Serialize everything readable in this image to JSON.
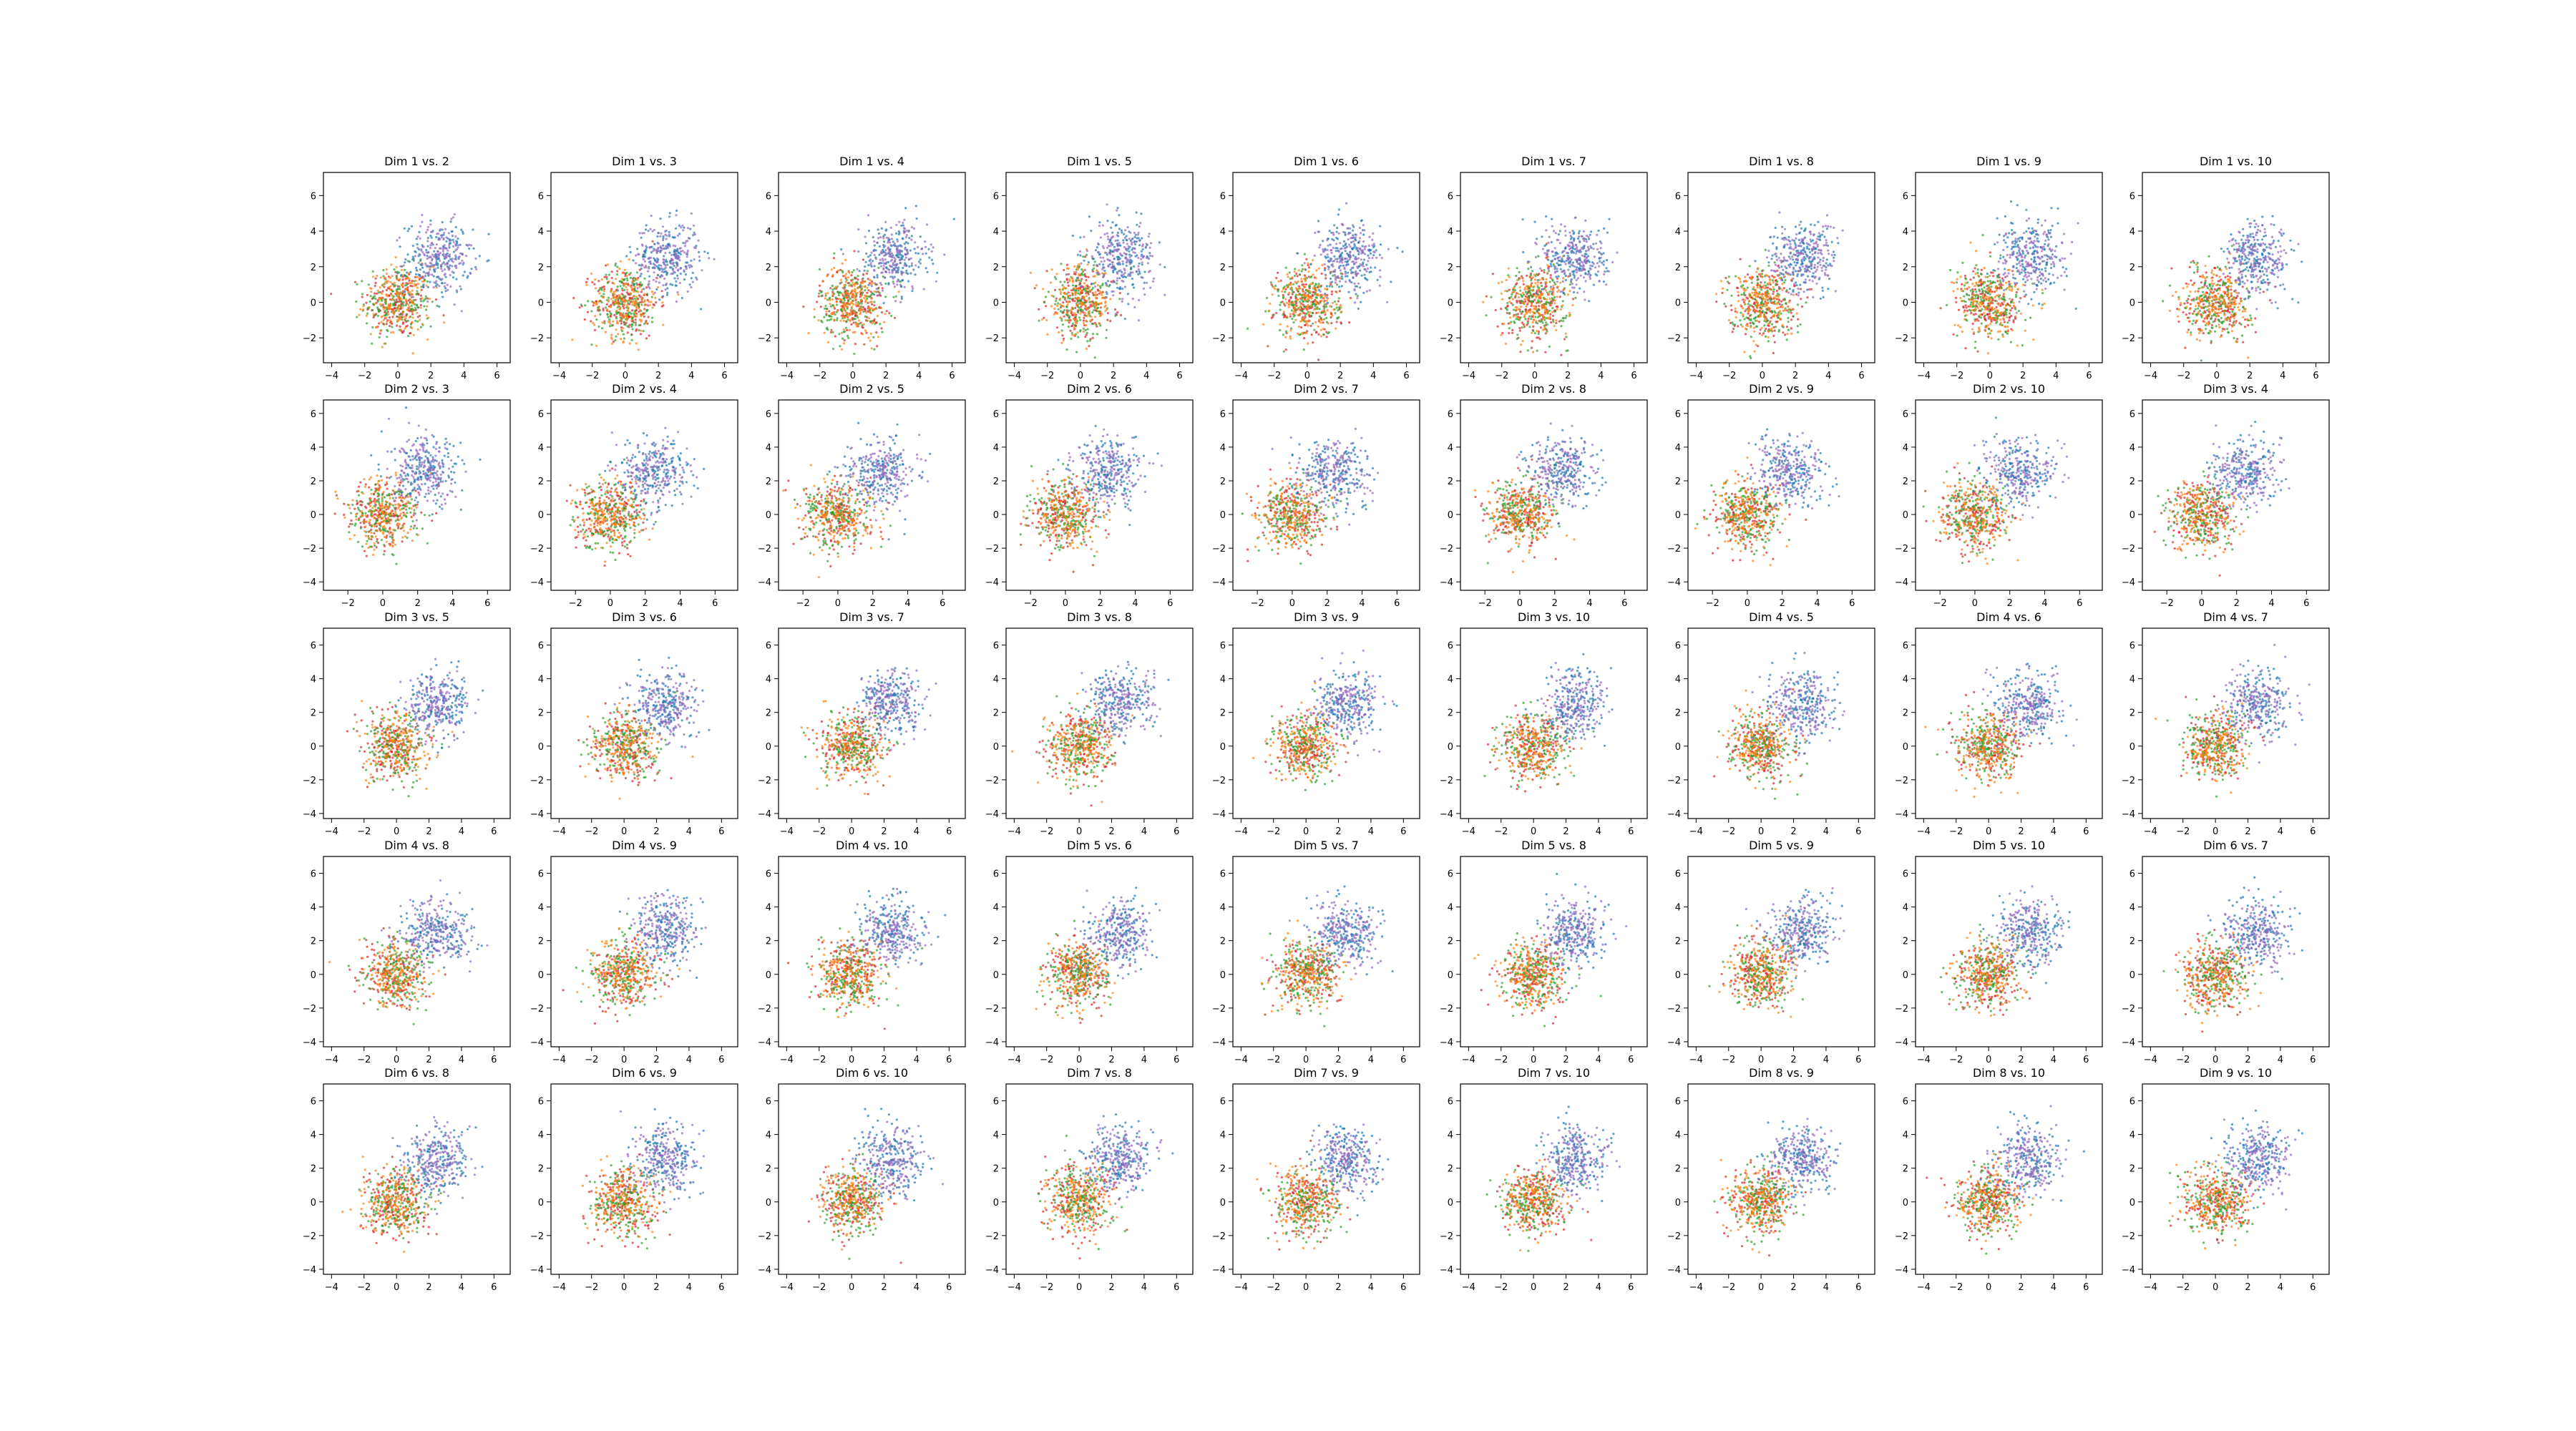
{
  "chart_data": {
    "type": "scatter",
    "grid": false,
    "legend": "none",
    "grid_layout": {
      "rows": 5,
      "cols": 9
    },
    "clusters": [
      {
        "color": "#d62728",
        "center": [
          0,
          0
        ],
        "std": 1.0
      },
      {
        "color": "#2ca02c",
        "center": [
          0,
          0
        ],
        "std": 1.0
      },
      {
        "color": "#ff7f0e",
        "center": [
          0,
          0
        ],
        "std": 1.0
      },
      {
        "color": "#1f77b4",
        "center": [
          2.5,
          2.5
        ],
        "std": 1.0
      },
      {
        "color": "#9467bd",
        "center": [
          2.5,
          2.5
        ],
        "std": 1.0
      }
    ],
    "panels": [
      {
        "title": "Dim 1 vs. 2",
        "xticks": [
          -4,
          -2,
          0,
          2,
          4,
          6
        ],
        "yticks": [
          -2,
          0,
          2,
          4,
          6
        ],
        "xlim": [
          -4.5,
          6.8
        ],
        "ylim": [
          -3.4,
          7.3
        ]
      },
      {
        "title": "Dim 1 vs. 3",
        "xticks": [
          -4,
          -2,
          0,
          2,
          4,
          6
        ],
        "yticks": [
          -2,
          0,
          2,
          4,
          6
        ],
        "xlim": [
          -4.5,
          6.8
        ],
        "ylim": [
          -3.4,
          7.3
        ]
      },
      {
        "title": "Dim 1 vs. 4",
        "xticks": [
          -4,
          -2,
          0,
          2,
          4,
          6
        ],
        "yticks": [
          -2,
          0,
          2,
          4,
          6
        ],
        "xlim": [
          -4.5,
          6.8
        ],
        "ylim": [
          -3.4,
          7.3
        ]
      },
      {
        "title": "Dim 1 vs. 5",
        "xticks": [
          -4,
          -2,
          0,
          2,
          4,
          6
        ],
        "yticks": [
          -2,
          0,
          2,
          4,
          6
        ],
        "xlim": [
          -4.5,
          6.8
        ],
        "ylim": [
          -3.4,
          7.3
        ]
      },
      {
        "title": "Dim 1 vs. 6",
        "xticks": [
          -4,
          -2,
          0,
          2,
          4,
          6
        ],
        "yticks": [
          -2,
          0,
          2,
          4,
          6
        ],
        "xlim": [
          -4.5,
          6.8
        ],
        "ylim": [
          -3.4,
          7.3
        ]
      },
      {
        "title": "Dim 1 vs. 7",
        "xticks": [
          -4,
          -2,
          0,
          2,
          4,
          6
        ],
        "yticks": [
          -2,
          0,
          2,
          4,
          6
        ],
        "xlim": [
          -4.5,
          6.8
        ],
        "ylim": [
          -3.4,
          7.3
        ]
      },
      {
        "title": "Dim 1 vs. 8",
        "xticks": [
          -4,
          -2,
          0,
          2,
          4,
          6
        ],
        "yticks": [
          -2,
          0,
          2,
          4,
          6
        ],
        "xlim": [
          -4.5,
          6.8
        ],
        "ylim": [
          -3.4,
          7.3
        ]
      },
      {
        "title": "Dim 1 vs. 9",
        "xticks": [
          -4,
          -2,
          0,
          2,
          4,
          6
        ],
        "yticks": [
          -2,
          0,
          2,
          4,
          6
        ],
        "xlim": [
          -4.5,
          6.8
        ],
        "ylim": [
          -3.4,
          7.3
        ]
      },
      {
        "title": "Dim 1 vs. 10",
        "xticks": [
          -4,
          -2,
          0,
          2,
          4,
          6
        ],
        "yticks": [
          -2,
          0,
          2,
          4,
          6
        ],
        "xlim": [
          -4.5,
          6.8
        ],
        "ylim": [
          -3.4,
          7.3
        ]
      },
      {
        "title": "Dim 2 vs. 3",
        "xticks": [
          -2,
          0,
          2,
          4,
          6
        ],
        "yticks": [
          -4,
          -2,
          0,
          2,
          4,
          6
        ],
        "xlim": [
          -3.4,
          7.3
        ],
        "ylim": [
          -4.5,
          6.8
        ]
      },
      {
        "title": "Dim 2 vs. 4",
        "xticks": [
          -2,
          0,
          2,
          4,
          6
        ],
        "yticks": [
          -4,
          -2,
          0,
          2,
          4,
          6
        ],
        "xlim": [
          -3.4,
          7.3
        ],
        "ylim": [
          -4.5,
          6.8
        ]
      },
      {
        "title": "Dim 2 vs. 5",
        "xticks": [
          -2,
          0,
          2,
          4,
          6
        ],
        "yticks": [
          -4,
          -2,
          0,
          2,
          4,
          6
        ],
        "xlim": [
          -3.4,
          7.3
        ],
        "ylim": [
          -4.5,
          6.8
        ]
      },
      {
        "title": "Dim 2 vs. 6",
        "xticks": [
          -2,
          0,
          2,
          4,
          6
        ],
        "yticks": [
          -4,
          -2,
          0,
          2,
          4,
          6
        ],
        "xlim": [
          -3.4,
          7.3
        ],
        "ylim": [
          -4.5,
          6.8
        ]
      },
      {
        "title": "Dim 2 vs. 7",
        "xticks": [
          -2,
          0,
          2,
          4,
          6
        ],
        "yticks": [
          -4,
          -2,
          0,
          2,
          4,
          6
        ],
        "xlim": [
          -3.4,
          7.3
        ],
        "ylim": [
          -4.5,
          6.8
        ]
      },
      {
        "title": "Dim 2 vs. 8",
        "xticks": [
          -2,
          0,
          2,
          4,
          6
        ],
        "yticks": [
          -4,
          -2,
          0,
          2,
          4,
          6
        ],
        "xlim": [
          -3.4,
          7.3
        ],
        "ylim": [
          -4.5,
          6.8
        ]
      },
      {
        "title": "Dim 2 vs. 9",
        "xticks": [
          -2,
          0,
          2,
          4,
          6
        ],
        "yticks": [
          -4,
          -2,
          0,
          2,
          4,
          6
        ],
        "xlim": [
          -3.4,
          7.3
        ],
        "ylim": [
          -4.5,
          6.8
        ]
      },
      {
        "title": "Dim 2 vs. 10",
        "xticks": [
          -2,
          0,
          2,
          4,
          6
        ],
        "yticks": [
          -4,
          -2,
          0,
          2,
          4,
          6
        ],
        "xlim": [
          -3.4,
          7.3
        ],
        "ylim": [
          -4.5,
          6.8
        ]
      },
      {
        "title": "Dim 3 vs. 4",
        "xticks": [
          -2,
          0,
          2,
          4,
          6
        ],
        "yticks": [
          -4,
          -2,
          0,
          2,
          4,
          6
        ],
        "xlim": [
          -3.4,
          7.3
        ],
        "ylim": [
          -4.5,
          6.8
        ]
      },
      {
        "title": "Dim 3 vs. 5",
        "xticks": [
          -4,
          -2,
          0,
          2,
          4,
          6
        ],
        "yticks": [
          -4,
          -2,
          0,
          2,
          4,
          6
        ],
        "xlim": [
          -4.5,
          7.0
        ],
        "ylim": [
          -4.3,
          7.0
        ]
      },
      {
        "title": "Dim 3 vs. 6",
        "xticks": [
          -4,
          -2,
          0,
          2,
          4,
          6
        ],
        "yticks": [
          -4,
          -2,
          0,
          2,
          4,
          6
        ],
        "xlim": [
          -4.5,
          7.0
        ],
        "ylim": [
          -4.3,
          7.0
        ]
      },
      {
        "title": "Dim 3 vs. 7",
        "xticks": [
          -4,
          -2,
          0,
          2,
          4,
          6
        ],
        "yticks": [
          -4,
          -2,
          0,
          2,
          4,
          6
        ],
        "xlim": [
          -4.5,
          7.0
        ],
        "ylim": [
          -4.3,
          7.0
        ]
      },
      {
        "title": "Dim 3 vs. 8",
        "xticks": [
          -4,
          -2,
          0,
          2,
          4,
          6
        ],
        "yticks": [
          -4,
          -2,
          0,
          2,
          4,
          6
        ],
        "xlim": [
          -4.5,
          7.0
        ],
        "ylim": [
          -4.3,
          7.0
        ]
      },
      {
        "title": "Dim 3 vs. 9",
        "xticks": [
          -4,
          -2,
          0,
          2,
          4,
          6
        ],
        "yticks": [
          -4,
          -2,
          0,
          2,
          4,
          6
        ],
        "xlim": [
          -4.5,
          7.0
        ],
        "ylim": [
          -4.3,
          7.0
        ]
      },
      {
        "title": "Dim 3 vs. 10",
        "xticks": [
          -4,
          -2,
          0,
          2,
          4,
          6
        ],
        "yticks": [
          -4,
          -2,
          0,
          2,
          4,
          6
        ],
        "xlim": [
          -4.5,
          7.0
        ],
        "ylim": [
          -4.3,
          7.0
        ]
      },
      {
        "title": "Dim 4 vs. 5",
        "xticks": [
          -4,
          -2,
          0,
          2,
          4,
          6
        ],
        "yticks": [
          -4,
          -2,
          0,
          2,
          4,
          6
        ],
        "xlim": [
          -4.5,
          7.0
        ],
        "ylim": [
          -4.3,
          7.0
        ]
      },
      {
        "title": "Dim 4 vs. 6",
        "xticks": [
          -4,
          -2,
          0,
          2,
          4,
          6
        ],
        "yticks": [
          -4,
          -2,
          0,
          2,
          4,
          6
        ],
        "xlim": [
          -4.5,
          7.0
        ],
        "ylim": [
          -4.3,
          7.0
        ]
      },
      {
        "title": "Dim 4 vs. 7",
        "xticks": [
          -4,
          -2,
          0,
          2,
          4,
          6
        ],
        "yticks": [
          -4,
          -2,
          0,
          2,
          4,
          6
        ],
        "xlim": [
          -4.5,
          7.0
        ],
        "ylim": [
          -4.3,
          7.0
        ]
      },
      {
        "title": "Dim 4 vs. 8",
        "xticks": [
          -4,
          -2,
          0,
          2,
          4,
          6
        ],
        "yticks": [
          -4,
          -2,
          0,
          2,
          4,
          6
        ],
        "xlim": [
          -4.5,
          7.0
        ],
        "ylim": [
          -4.3,
          7.0
        ]
      },
      {
        "title": "Dim 4 vs. 9",
        "xticks": [
          -4,
          -2,
          0,
          2,
          4,
          6
        ],
        "yticks": [
          -4,
          -2,
          0,
          2,
          4,
          6
        ],
        "xlim": [
          -4.5,
          7.0
        ],
        "ylim": [
          -4.3,
          7.0
        ]
      },
      {
        "title": "Dim 4 vs. 10",
        "xticks": [
          -4,
          -2,
          0,
          2,
          4,
          6
        ],
        "yticks": [
          -4,
          -2,
          0,
          2,
          4,
          6
        ],
        "xlim": [
          -4.5,
          7.0
        ],
        "ylim": [
          -4.3,
          7.0
        ]
      },
      {
        "title": "Dim 5 vs. 6",
        "xticks": [
          -4,
          -2,
          0,
          2,
          4,
          6
        ],
        "yticks": [
          -4,
          -2,
          0,
          2,
          4,
          6
        ],
        "xlim": [
          -4.5,
          7.0
        ],
        "ylim": [
          -4.3,
          7.0
        ]
      },
      {
        "title": "Dim 5 vs. 7",
        "xticks": [
          -4,
          -2,
          0,
          2,
          4,
          6
        ],
        "yticks": [
          -4,
          -2,
          0,
          2,
          4,
          6
        ],
        "xlim": [
          -4.5,
          7.0
        ],
        "ylim": [
          -4.3,
          7.0
        ]
      },
      {
        "title": "Dim 5 vs. 8",
        "xticks": [
          -4,
          -2,
          0,
          2,
          4,
          6
        ],
        "yticks": [
          -4,
          -2,
          0,
          2,
          4,
          6
        ],
        "xlim": [
          -4.5,
          7.0
        ],
        "ylim": [
          -4.3,
          7.0
        ]
      },
      {
        "title": "Dim 5 vs. 9",
        "xticks": [
          -4,
          -2,
          0,
          2,
          4,
          6
        ],
        "yticks": [
          -4,
          -2,
          0,
          2,
          4,
          6
        ],
        "xlim": [
          -4.5,
          7.0
        ],
        "ylim": [
          -4.3,
          7.0
        ]
      },
      {
        "title": "Dim 5 vs. 10",
        "xticks": [
          -4,
          -2,
          0,
          2,
          4,
          6
        ],
        "yticks": [
          -4,
          -2,
          0,
          2,
          4,
          6
        ],
        "xlim": [
          -4.5,
          7.0
        ],
        "ylim": [
          -4.3,
          7.0
        ]
      },
      {
        "title": "Dim 6 vs. 7",
        "xticks": [
          -4,
          -2,
          0,
          2,
          4,
          6
        ],
        "yticks": [
          -4,
          -2,
          0,
          2,
          4,
          6
        ],
        "xlim": [
          -4.5,
          7.0
        ],
        "ylim": [
          -4.3,
          7.0
        ]
      },
      {
        "title": "Dim 6 vs. 8",
        "xticks": [
          -4,
          -2,
          0,
          2,
          4,
          6
        ],
        "yticks": [
          -4,
          -2,
          0,
          2,
          4,
          6
        ],
        "xlim": [
          -4.5,
          7.0
        ],
        "ylim": [
          -4.3,
          7.0
        ]
      },
      {
        "title": "Dim 6 vs. 9",
        "xticks": [
          -4,
          -2,
          0,
          2,
          4,
          6
        ],
        "yticks": [
          -4,
          -2,
          0,
          2,
          4,
          6
        ],
        "xlim": [
          -4.5,
          7.0
        ],
        "ylim": [
          -4.3,
          7.0
        ]
      },
      {
        "title": "Dim 6 vs. 10",
        "xticks": [
          -4,
          -2,
          0,
          2,
          4,
          6
        ],
        "yticks": [
          -4,
          -2,
          0,
          2,
          4,
          6
        ],
        "xlim": [
          -4.5,
          7.0
        ],
        "ylim": [
          -4.3,
          7.0
        ]
      },
      {
        "title": "Dim 7 vs. 8",
        "xticks": [
          -4,
          -2,
          0,
          2,
          4,
          6
        ],
        "yticks": [
          -4,
          -2,
          0,
          2,
          4,
          6
        ],
        "xlim": [
          -4.5,
          7.0
        ],
        "ylim": [
          -4.3,
          7.0
        ]
      },
      {
        "title": "Dim 7 vs. 9",
        "xticks": [
          -4,
          -2,
          0,
          2,
          4,
          6
        ],
        "yticks": [
          -4,
          -2,
          0,
          2,
          4,
          6
        ],
        "xlim": [
          -4.5,
          7.0
        ],
        "ylim": [
          -4.3,
          7.0
        ]
      },
      {
        "title": "Dim 7 vs. 10",
        "xticks": [
          -4,
          -2,
          0,
          2,
          4,
          6
        ],
        "yticks": [
          -4,
          -2,
          0,
          2,
          4,
          6
        ],
        "xlim": [
          -4.5,
          7.0
        ],
        "ylim": [
          -4.3,
          7.0
        ]
      },
      {
        "title": "Dim 8 vs. 9",
        "xticks": [
          -4,
          -2,
          0,
          2,
          4,
          6
        ],
        "yticks": [
          -4,
          -2,
          0,
          2,
          4,
          6
        ],
        "xlim": [
          -4.5,
          7.0
        ],
        "ylim": [
          -4.3,
          7.0
        ]
      },
      {
        "title": "Dim 8 vs. 10",
        "xticks": [
          -4,
          -2,
          0,
          2,
          4,
          6
        ],
        "yticks": [
          -4,
          -2,
          0,
          2,
          4,
          6
        ],
        "xlim": [
          -4.5,
          7.0
        ],
        "ylim": [
          -4.3,
          7.0
        ]
      },
      {
        "title": "Dim 9 vs. 10",
        "xticks": [
          -4,
          -2,
          0,
          2,
          4,
          6
        ],
        "yticks": [
          -4,
          -2,
          0,
          2,
          4,
          6
        ],
        "xlim": [
          -4.5,
          7.0
        ],
        "ylim": [
          -4.3,
          7.0
        ]
      }
    ]
  }
}
